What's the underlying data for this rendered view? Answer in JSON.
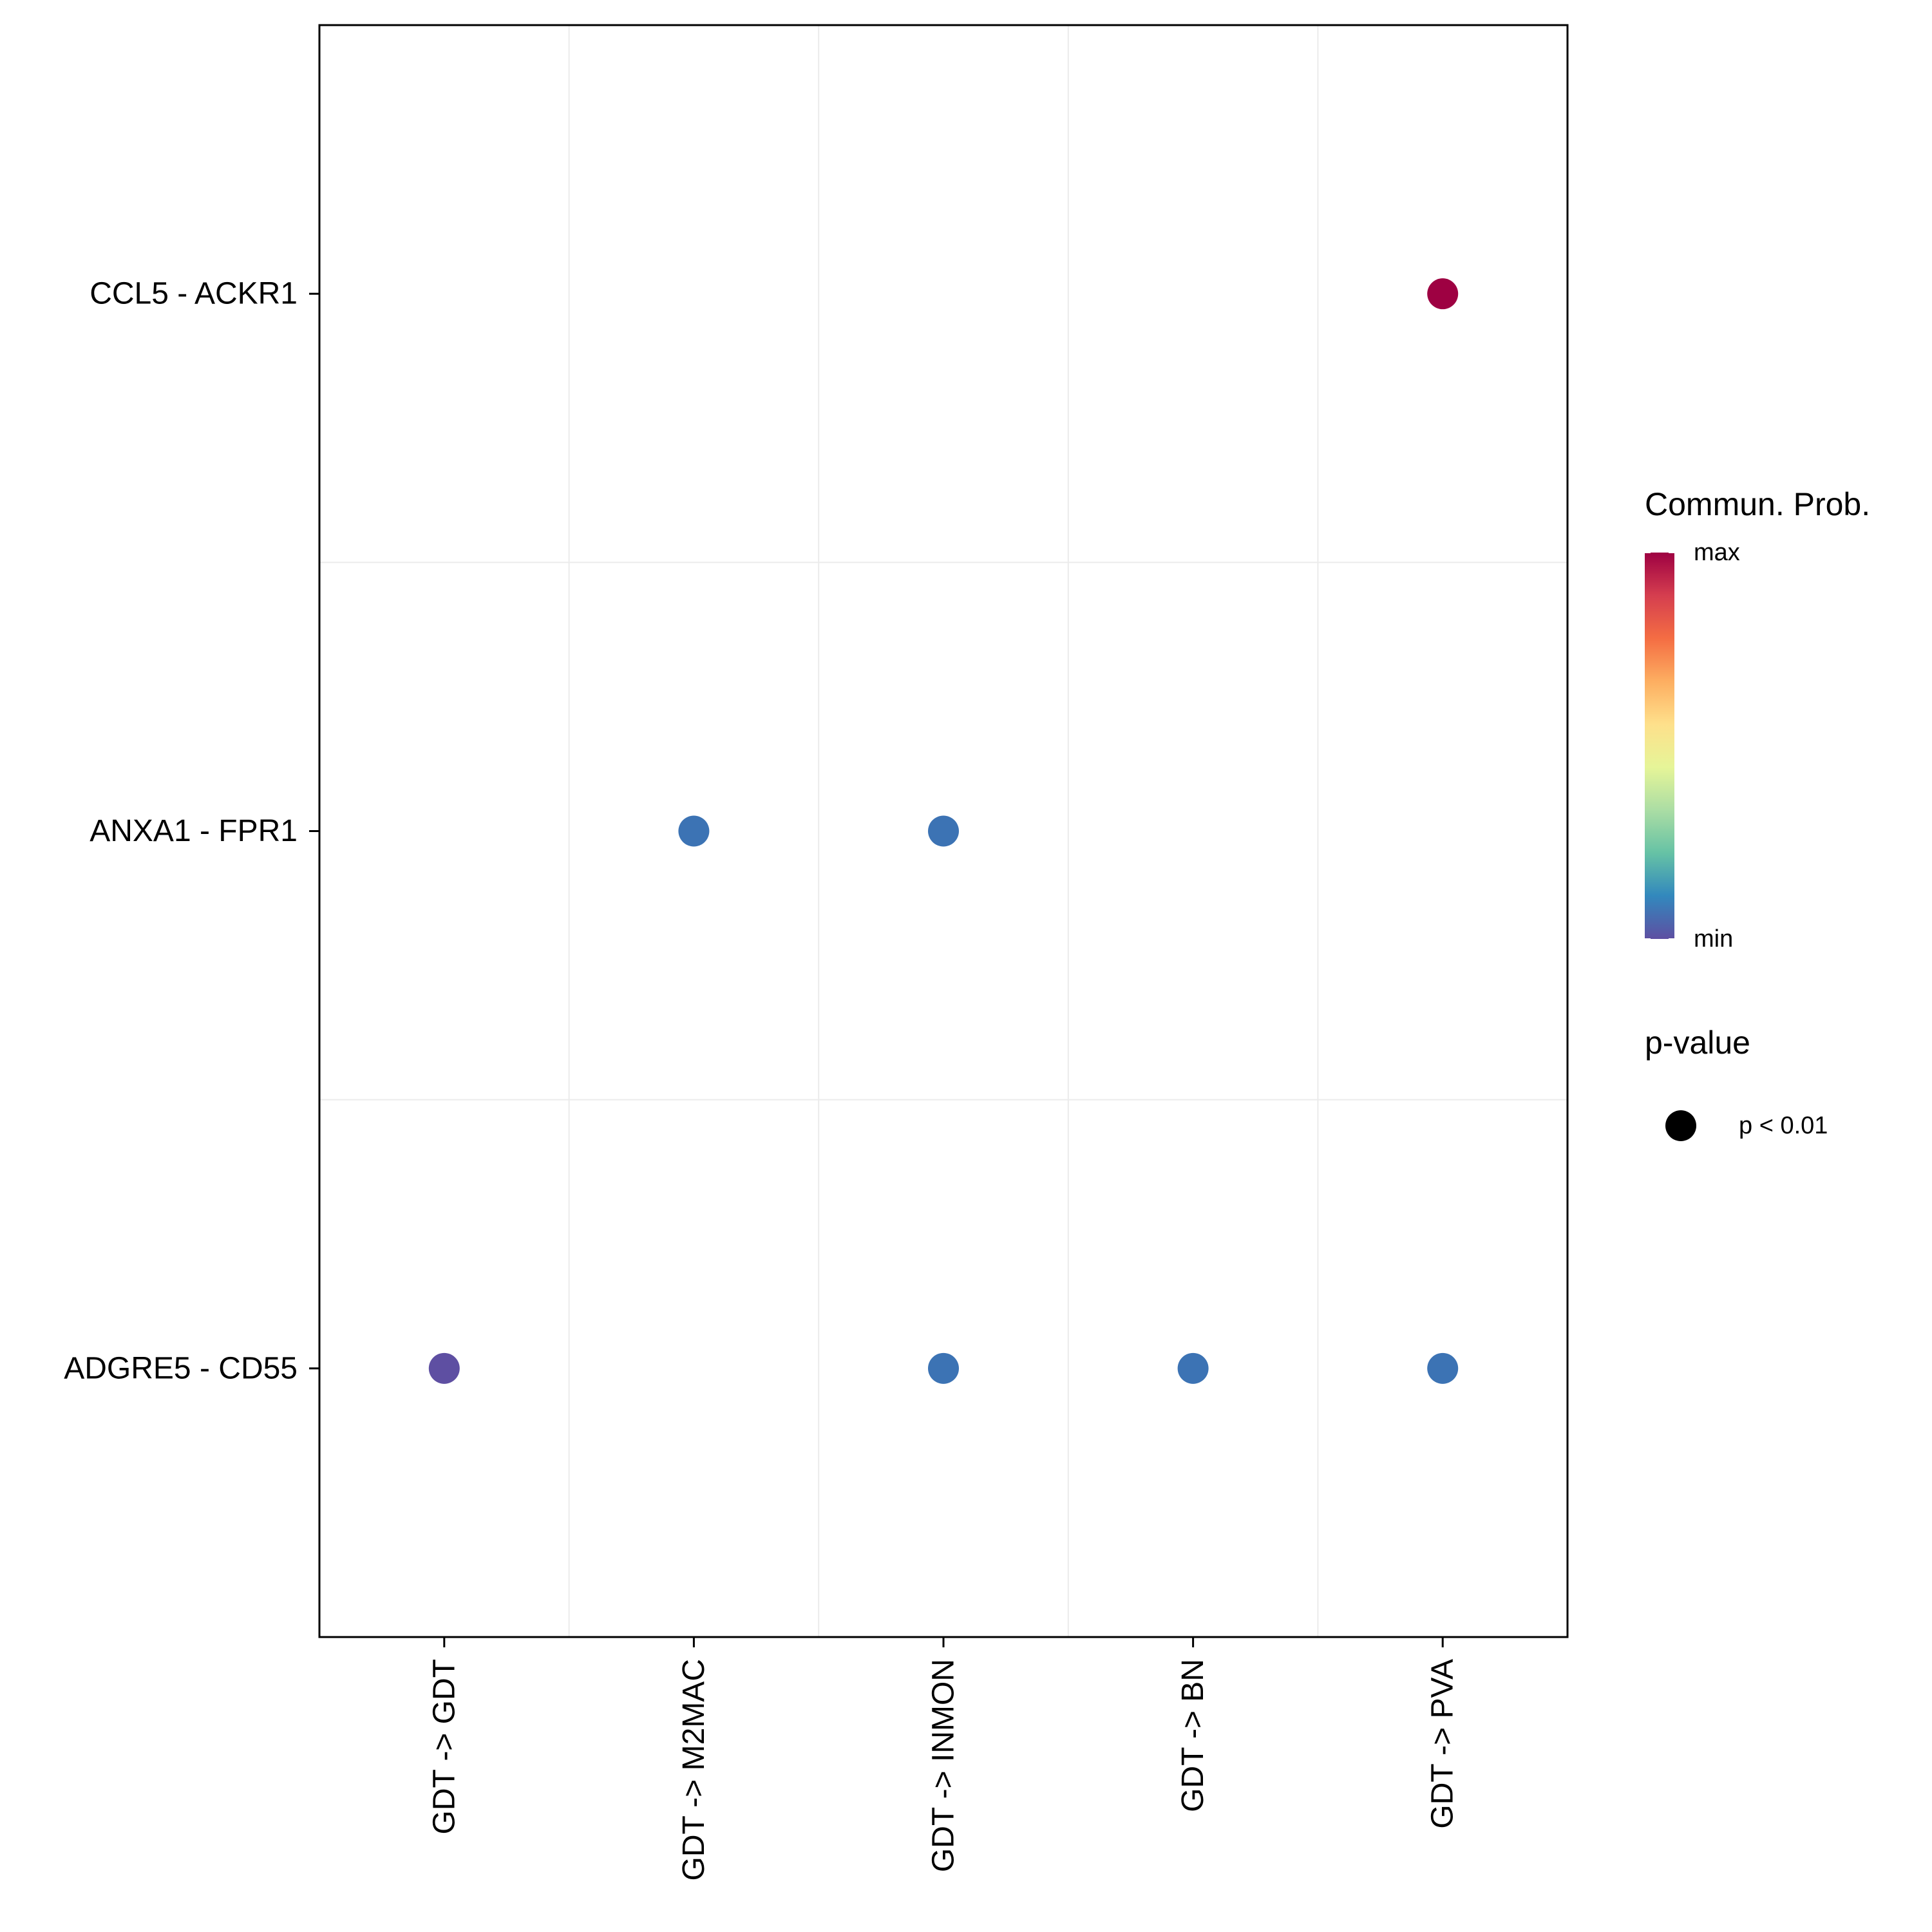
{
  "chart_data": {
    "type": "scatter",
    "x_categories": [
      "GDT -> GDT",
      "GDT -> M2MAC",
      "GDT -> INMON",
      "GDT -> BN",
      "GDT -> PVA"
    ],
    "y_categories": [
      "CCL5 - ACKR1",
      "ANXA1 - FPR1",
      "ADGRE5 - CD55"
    ],
    "points": [
      {
        "x": "GDT -> PVA",
        "y": "CCL5 - ACKR1",
        "prob": 1.0,
        "color": "#9E0142"
      },
      {
        "x": "GDT -> M2MAC",
        "y": "ANXA1 - FPR1",
        "prob": 0.1,
        "color": "#3C73B4"
      },
      {
        "x": "GDT -> INMON",
        "y": "ANXA1 - FPR1",
        "prob": 0.1,
        "color": "#3C73B4"
      },
      {
        "x": "GDT -> GDT",
        "y": "ADGRE5 - CD55",
        "prob": 0.0,
        "color": "#5E4FA2"
      },
      {
        "x": "GDT -> INMON",
        "y": "ADGRE5 - CD55",
        "prob": 0.1,
        "color": "#3C73B4"
      },
      {
        "x": "GDT -> BN",
        "y": "ADGRE5 - CD55",
        "prob": 0.1,
        "color": "#3C73B4"
      },
      {
        "x": "GDT -> PVA",
        "y": "ADGRE5 - CD55",
        "prob": 0.1,
        "color": "#3C73B4"
      }
    ],
    "grid": true,
    "legend_position": "right",
    "color_legend": {
      "title": "Commun. Prob.",
      "max_label": "max",
      "min_label": "min",
      "colormap": [
        "#5E4FA2",
        "#3288BD",
        "#66C2A5",
        "#ABDDA4",
        "#E6F598",
        "#FEE08B",
        "#FDAE61",
        "#F46D43",
        "#D53E4F",
        "#9E0142"
      ]
    },
    "size_legend": {
      "title": "p-value",
      "entries": [
        {
          "label": "p < 0.01",
          "color": "#000000"
        }
      ]
    }
  }
}
